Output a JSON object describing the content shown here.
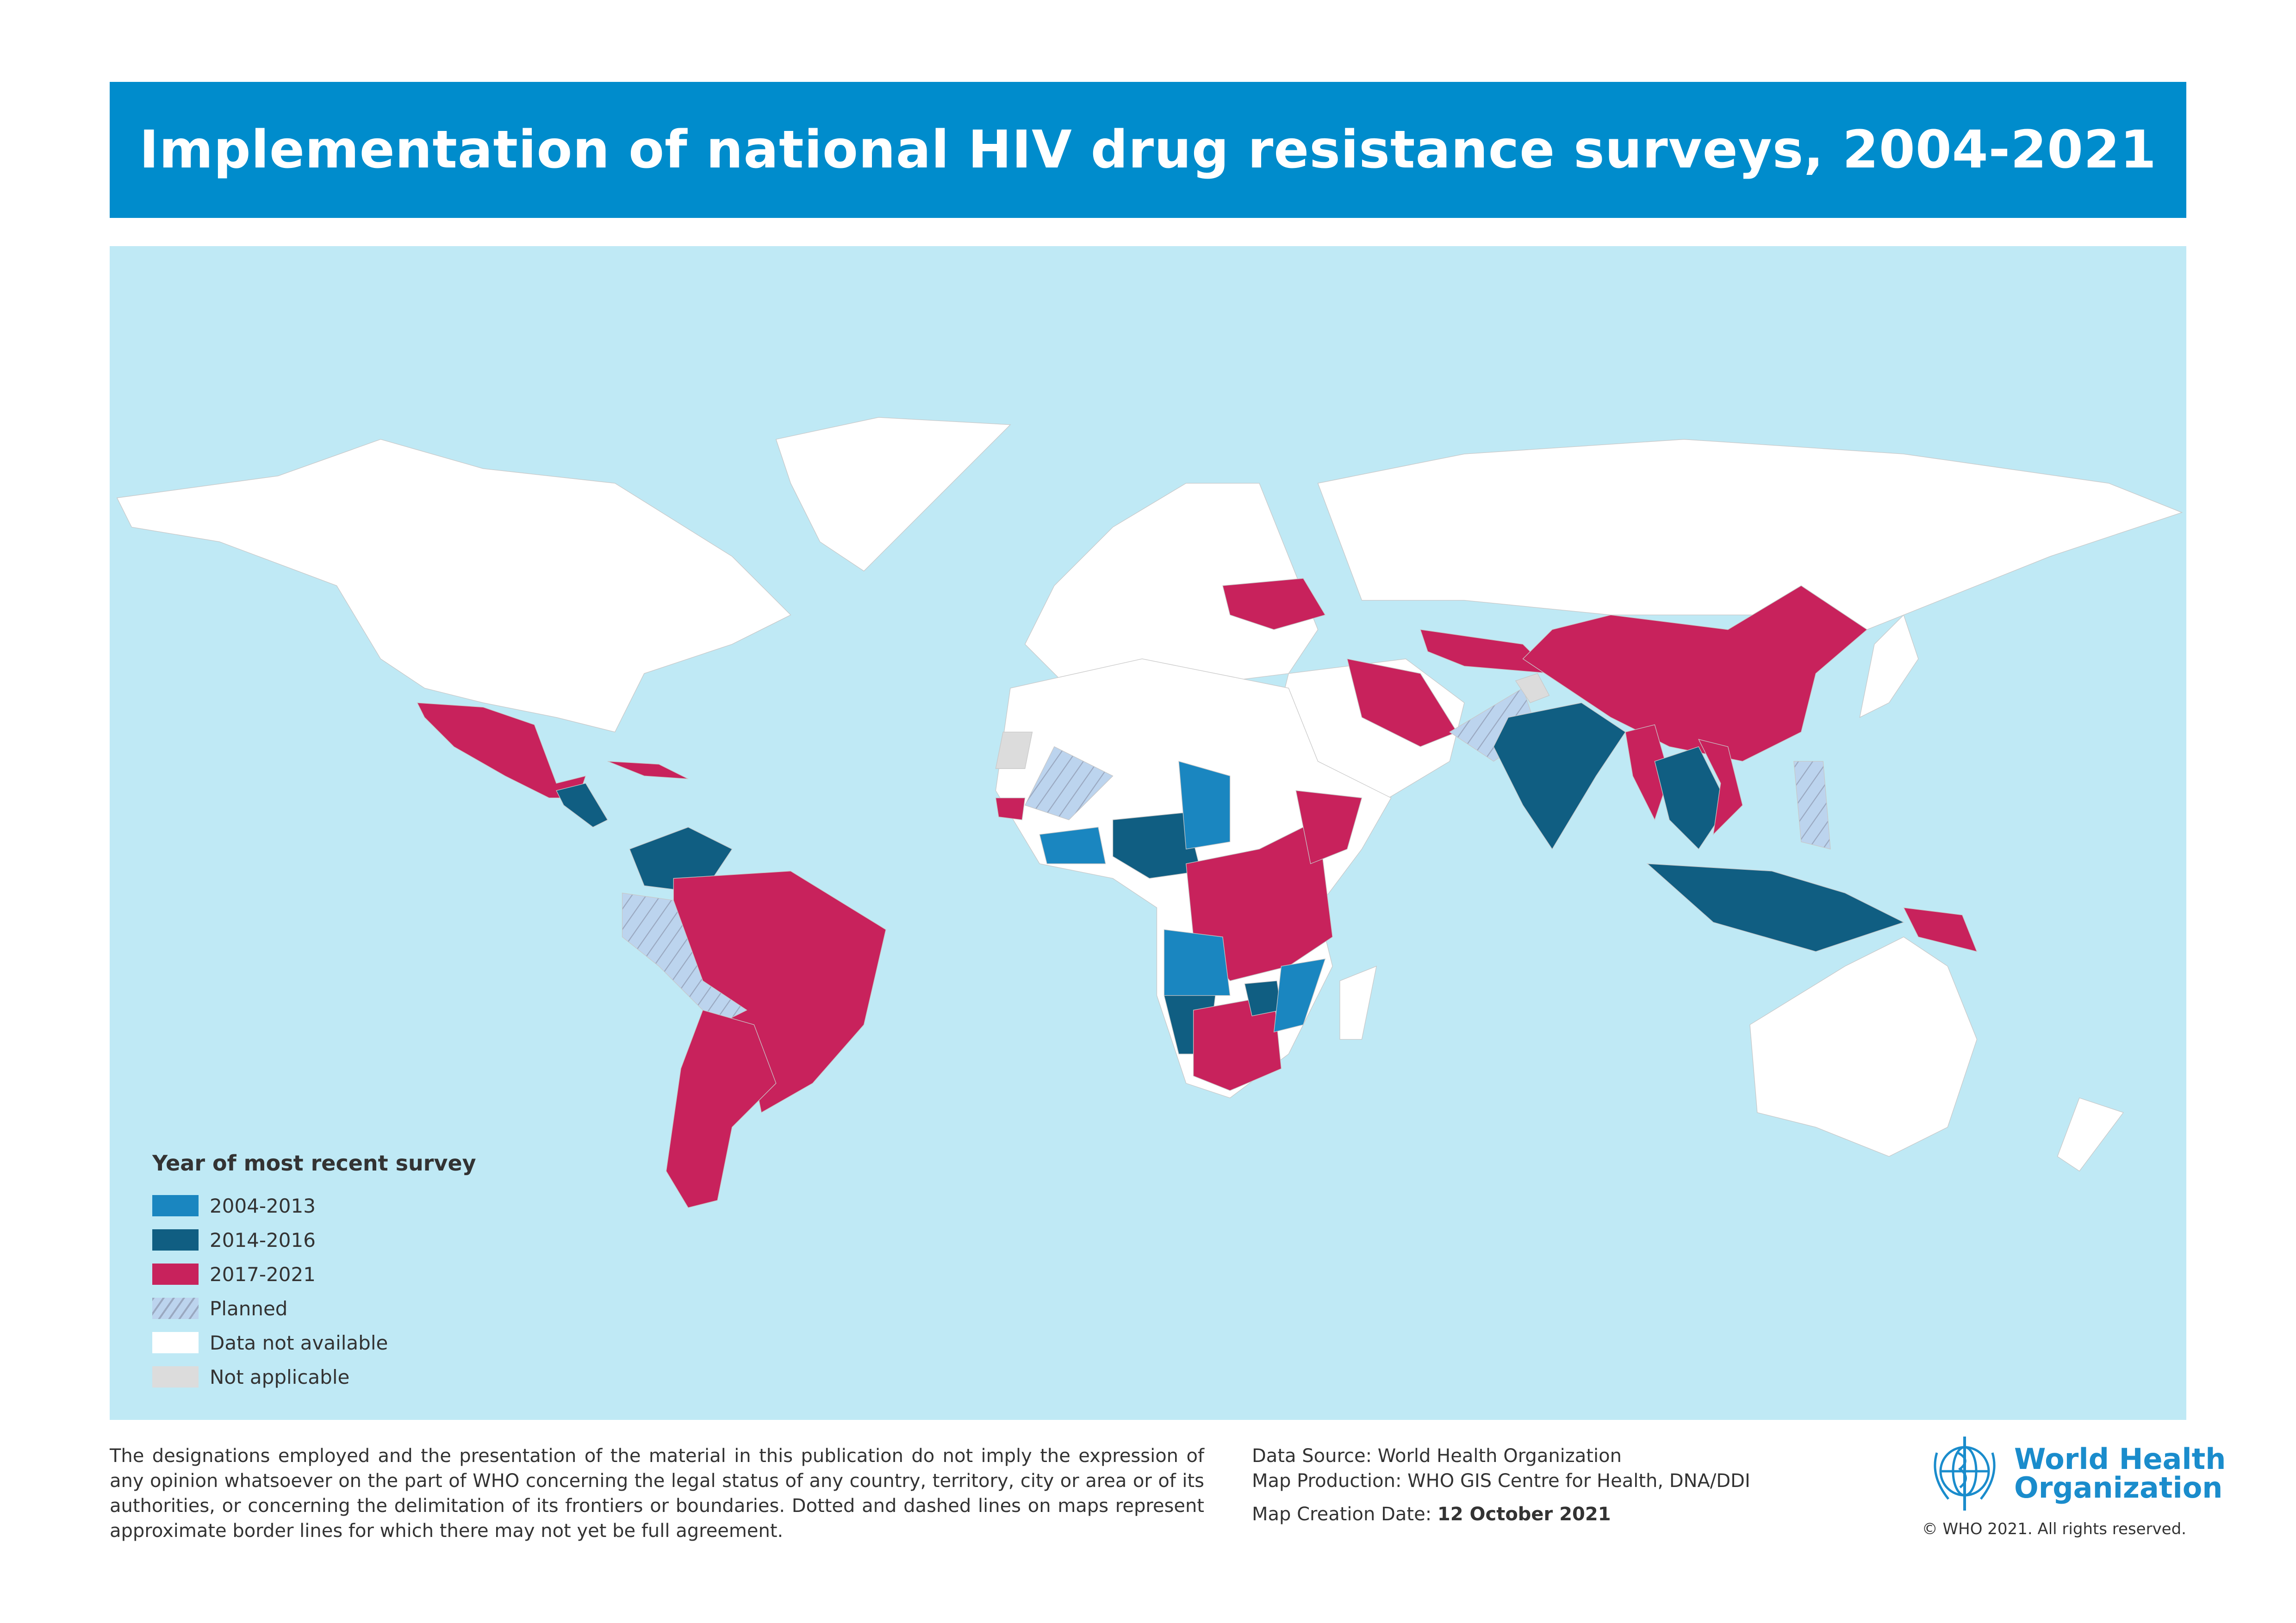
{
  "title": "Implementation of national HIV drug resistance surveys, 2004-2021",
  "colors": {
    "title_bar": "#008ccc",
    "ocean": "#bfe9f5",
    "2004-2013": "#1a86c0",
    "2014-2016": "#105e82",
    "2017-2021": "#c8225c",
    "planned": "#bcd4ee",
    "data_not_available": "#ffffff",
    "not_applicable": "#dcdcdc"
  },
  "legend": {
    "title": "Year of most recent survey",
    "items": [
      {
        "label": "2004-2013",
        "key": "2004-2013"
      },
      {
        "label": "2014-2016",
        "key": "2014-2016"
      },
      {
        "label": "2017-2021",
        "key": "2017-2021"
      },
      {
        "label": "Planned",
        "key": "planned"
      },
      {
        "label": "Data not available",
        "key": "data_not_available"
      },
      {
        "label": "Not applicable",
        "key": "not_applicable"
      }
    ]
  },
  "footer": {
    "disclaimer": "The designations employed and the presentation of the material in this publication do not imply the expression of any opinion whatsoever on the part of WHO concerning the legal status of any country, territory, city or area or of its authorities, or concerning the delimitation of its frontiers or boundaries. Dotted and dashed lines on maps represent approximate border lines for which there may not yet be full agreement.",
    "data_source": "Data Source: World Health Organization",
    "map_production": "Map Production: WHO GIS Centre for Health, DNA/DDI",
    "creation_label": "Map Creation Date: ",
    "creation_date": "12 October 2021",
    "logo_line1": "World Health",
    "logo_line2": "Organization",
    "copyright": "© WHO 2021. All rights reserved."
  }
}
